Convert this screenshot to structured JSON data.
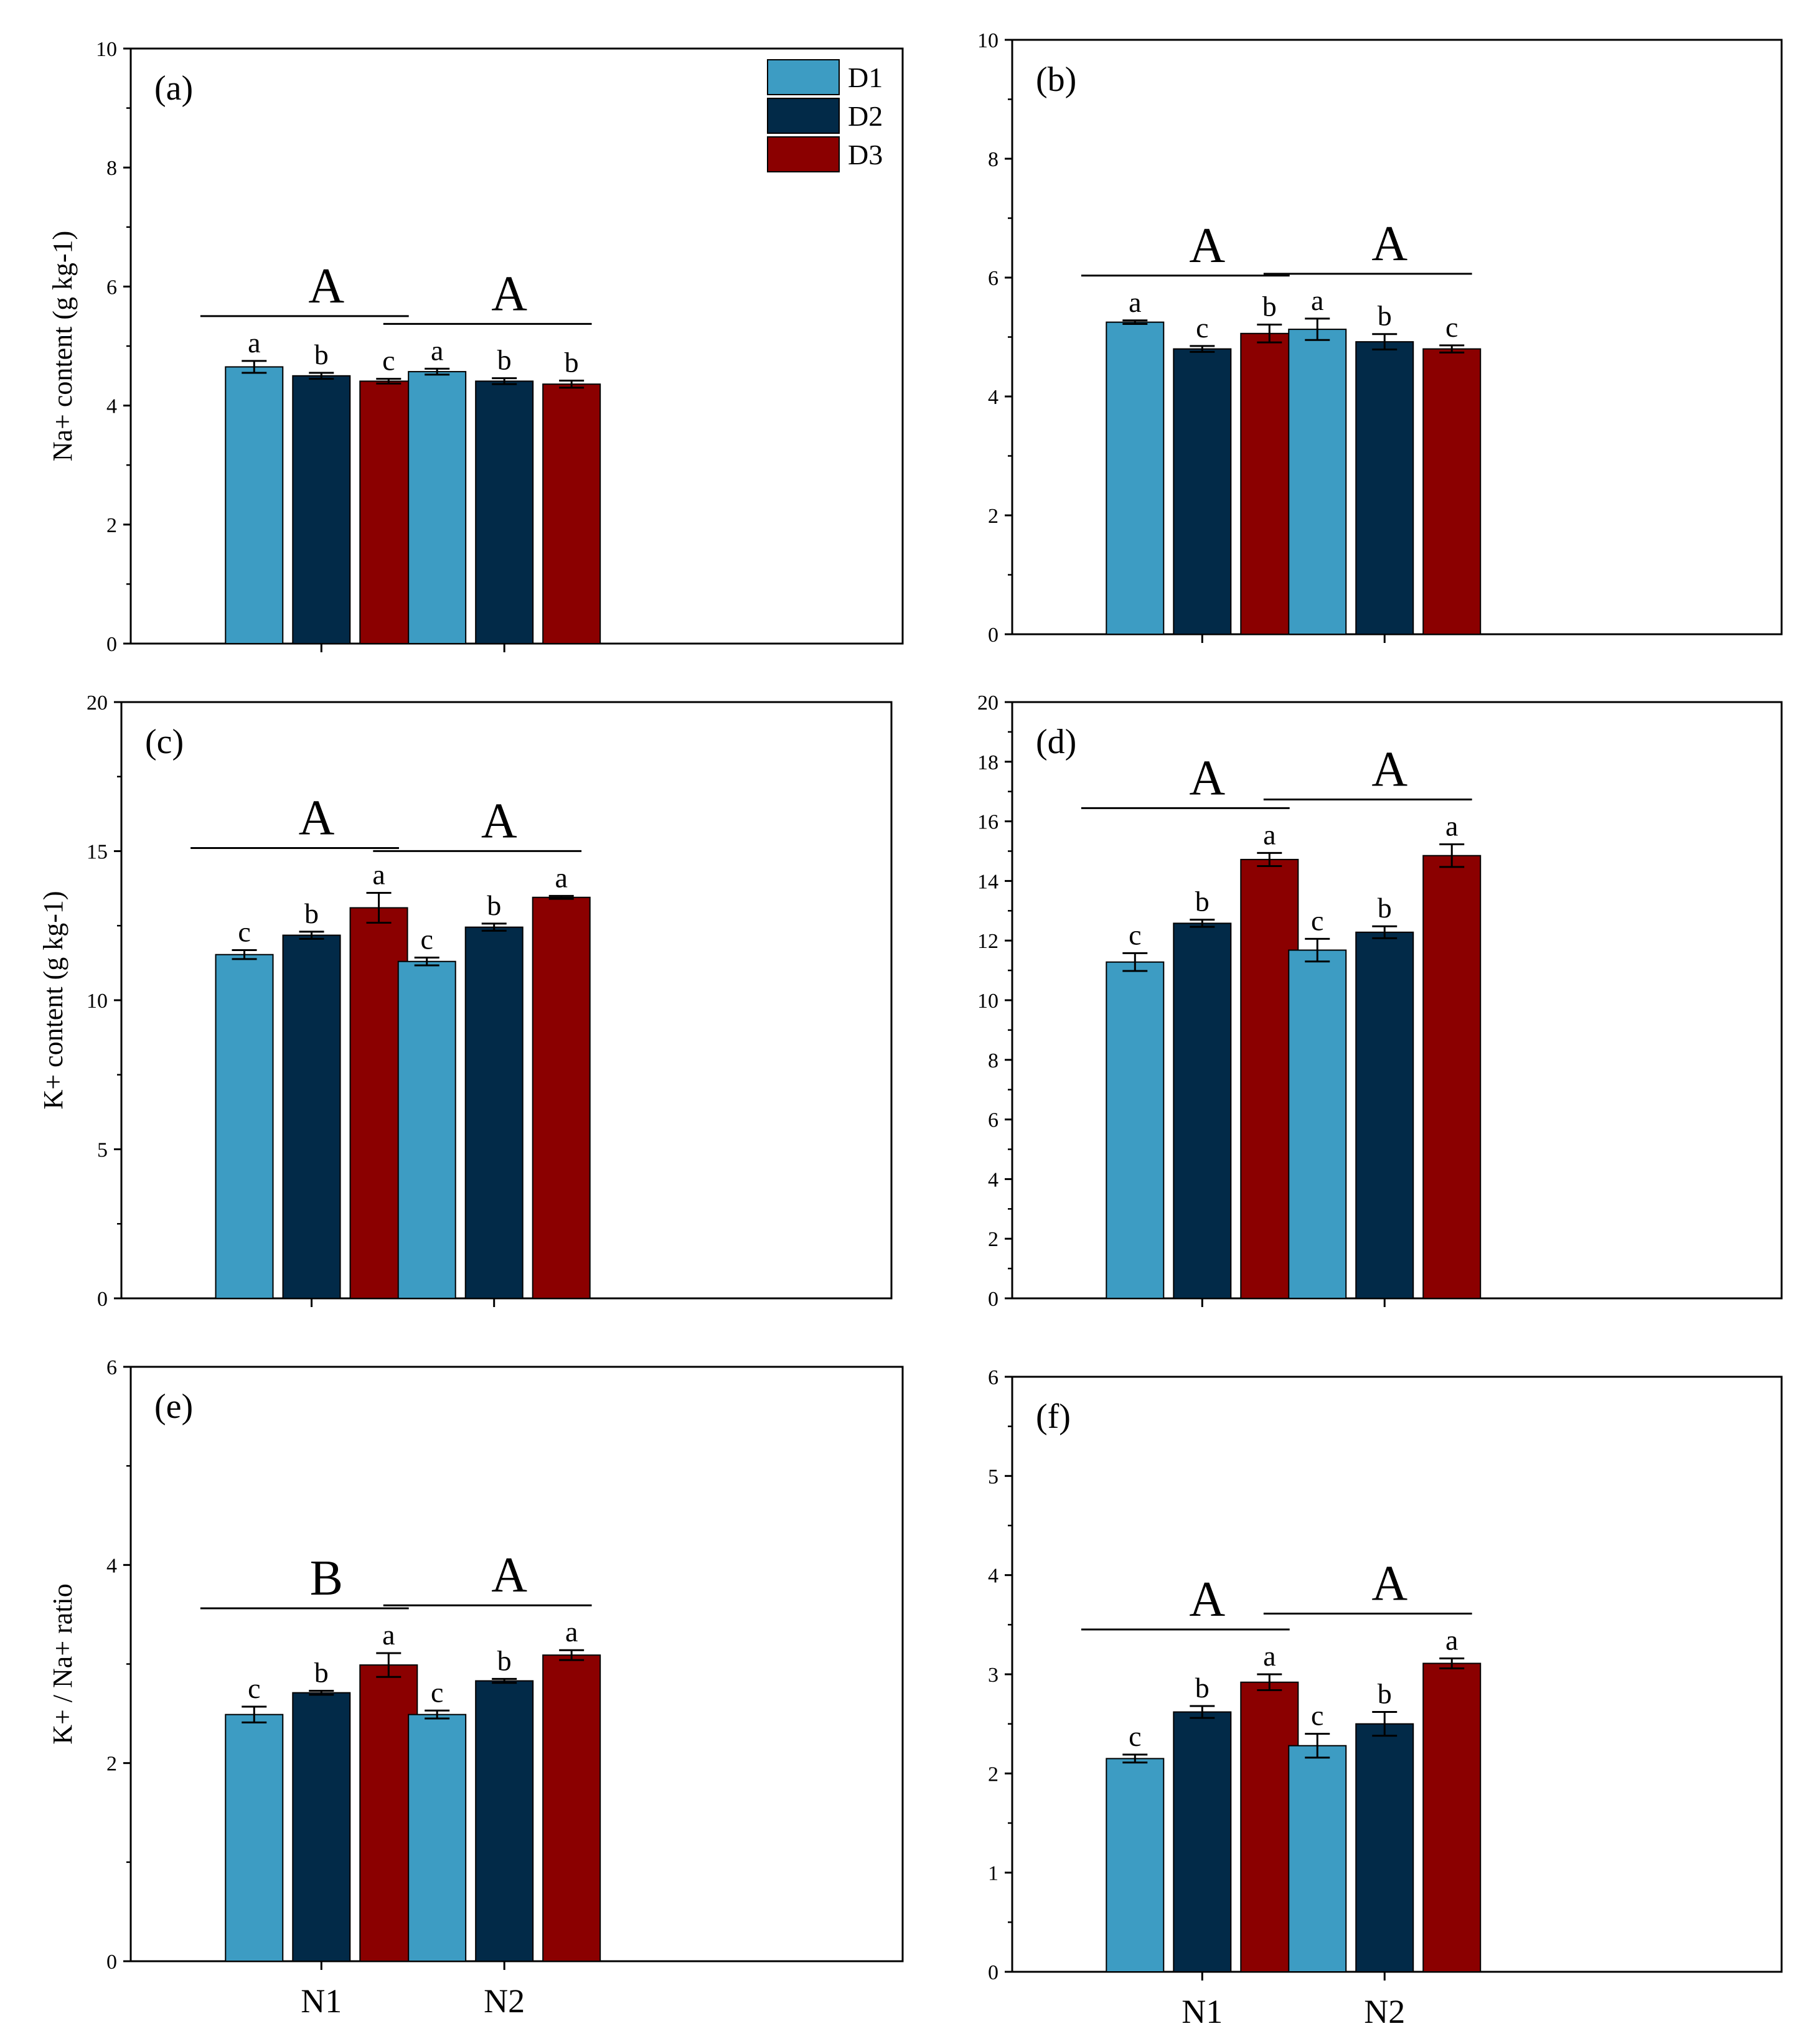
{
  "colors": {
    "D1": "#3d9cc3",
    "D2": "#022a48",
    "D3": "#8b0000"
  },
  "legend": {
    "items": [
      "D1",
      "D2",
      "D3"
    ]
  },
  "chart_data": [
    {
      "panel": "(a)",
      "type": "bar",
      "ylabel": "Na+ content (g kg-1)",
      "show_xticks": false,
      "ylim": [
        0,
        10
      ],
      "yticks": [
        0,
        2,
        4,
        6,
        8,
        10
      ],
      "categories": [
        "N1",
        "N2"
      ],
      "series": [
        {
          "name": "D1",
          "values": [
            4.65,
            4.57
          ],
          "errors": [
            0.1,
            0.05
          ],
          "letters": [
            "a",
            "a"
          ]
        },
        {
          "name": "D2",
          "values": [
            4.5,
            4.41
          ],
          "errors": [
            0.05,
            0.05
          ],
          "letters": [
            "b",
            "b"
          ]
        },
        {
          "name": "D3",
          "values": [
            4.41,
            4.36
          ],
          "errors": [
            0.04,
            0.06
          ],
          "letters": [
            "c",
            "b"
          ]
        }
      ],
      "group_letters": [
        "A",
        "A"
      ]
    },
    {
      "panel": "(b)",
      "type": "bar",
      "ylabel": "",
      "show_xticks": false,
      "ylim": [
        0,
        10
      ],
      "yticks": [
        0,
        2,
        4,
        6,
        8,
        10
      ],
      "categories": [
        "N1",
        "N2"
      ],
      "series": [
        {
          "name": "D1",
          "values": [
            5.25,
            5.13
          ],
          "errors": [
            0.03,
            0.18
          ],
          "letters": [
            "a",
            "a"
          ]
        },
        {
          "name": "D2",
          "values": [
            4.8,
            4.92
          ],
          "errors": [
            0.05,
            0.13
          ],
          "letters": [
            "c",
            "b"
          ]
        },
        {
          "name": "D3",
          "values": [
            5.06,
            4.8
          ],
          "errors": [
            0.15,
            0.06
          ],
          "letters": [
            "b",
            "c"
          ]
        }
      ],
      "group_letters": [
        "A",
        "A"
      ]
    },
    {
      "panel": "(c)",
      "type": "bar",
      "ylabel": "K+ content (g kg-1)",
      "show_xticks": false,
      "ylim": [
        0,
        20
      ],
      "yticks": [
        0,
        5,
        10,
        15,
        20
      ],
      "categories": [
        "N1",
        "N2"
      ],
      "series": [
        {
          "name": "D1",
          "values": [
            11.53,
            11.3
          ],
          "errors": [
            0.15,
            0.13
          ],
          "letters": [
            "c",
            "c"
          ]
        },
        {
          "name": "D2",
          "values": [
            12.18,
            12.45
          ],
          "errors": [
            0.12,
            0.12
          ],
          "letters": [
            "b",
            "b"
          ]
        },
        {
          "name": "D3",
          "values": [
            13.1,
            13.45
          ],
          "errors": [
            0.5,
            0.05
          ],
          "letters": [
            "a",
            "a"
          ]
        }
      ],
      "group_letters": [
        "A",
        "A"
      ]
    },
    {
      "panel": "(d)",
      "type": "bar",
      "ylabel": "",
      "show_xticks": false,
      "ylim": [
        0,
        20
      ],
      "yticks": [
        0,
        2,
        4,
        6,
        8,
        10,
        12,
        14,
        16,
        18,
        20
      ],
      "categories": [
        "N1",
        "N2"
      ],
      "series": [
        {
          "name": "D1",
          "values": [
            11.28,
            11.68
          ],
          "errors": [
            0.3,
            0.38
          ],
          "letters": [
            "c",
            "c"
          ]
        },
        {
          "name": "D2",
          "values": [
            12.58,
            12.28
          ],
          "errors": [
            0.12,
            0.2
          ],
          "letters": [
            "b",
            "b"
          ]
        },
        {
          "name": "D3",
          "values": [
            14.72,
            14.85
          ],
          "errors": [
            0.22,
            0.38
          ],
          "letters": [
            "a",
            "a"
          ]
        }
      ],
      "group_letters": [
        "A",
        "A"
      ]
    },
    {
      "panel": "(e)",
      "type": "bar",
      "ylabel": "K+ / Na+ ratio",
      "show_xticks": true,
      "ylim": [
        0,
        6
      ],
      "yticks": [
        0,
        2,
        4,
        6
      ],
      "categories": [
        "N1",
        "N2"
      ],
      "series": [
        {
          "name": "D1",
          "values": [
            2.49,
            2.49
          ],
          "errors": [
            0.08,
            0.04
          ],
          "letters": [
            "c",
            "c"
          ]
        },
        {
          "name": "D2",
          "values": [
            2.71,
            2.83
          ],
          "errors": [
            0.02,
            0.02
          ],
          "letters": [
            "b",
            "b"
          ]
        },
        {
          "name": "D3",
          "values": [
            2.99,
            3.09
          ],
          "errors": [
            0.12,
            0.05
          ],
          "letters": [
            "a",
            "a"
          ]
        }
      ],
      "group_letters": [
        "B",
        "A"
      ]
    },
    {
      "panel": "(f)",
      "type": "bar",
      "ylabel": "",
      "show_xticks": true,
      "ylim": [
        0,
        6
      ],
      "yticks": [
        0,
        1,
        2,
        3,
        4,
        5,
        6
      ],
      "categories": [
        "N1",
        "N2"
      ],
      "series": [
        {
          "name": "D1",
          "values": [
            2.15,
            2.28
          ],
          "errors": [
            0.04,
            0.12
          ],
          "letters": [
            "c",
            "c"
          ]
        },
        {
          "name": "D2",
          "values": [
            2.62,
            2.5
          ],
          "errors": [
            0.06,
            0.12
          ],
          "letters": [
            "b",
            "b"
          ]
        },
        {
          "name": "D3",
          "values": [
            2.92,
            3.11
          ],
          "errors": [
            0.08,
            0.05
          ],
          "letters": [
            "a",
            "a"
          ]
        }
      ],
      "group_letters": [
        "A",
        "A"
      ]
    }
  ]
}
